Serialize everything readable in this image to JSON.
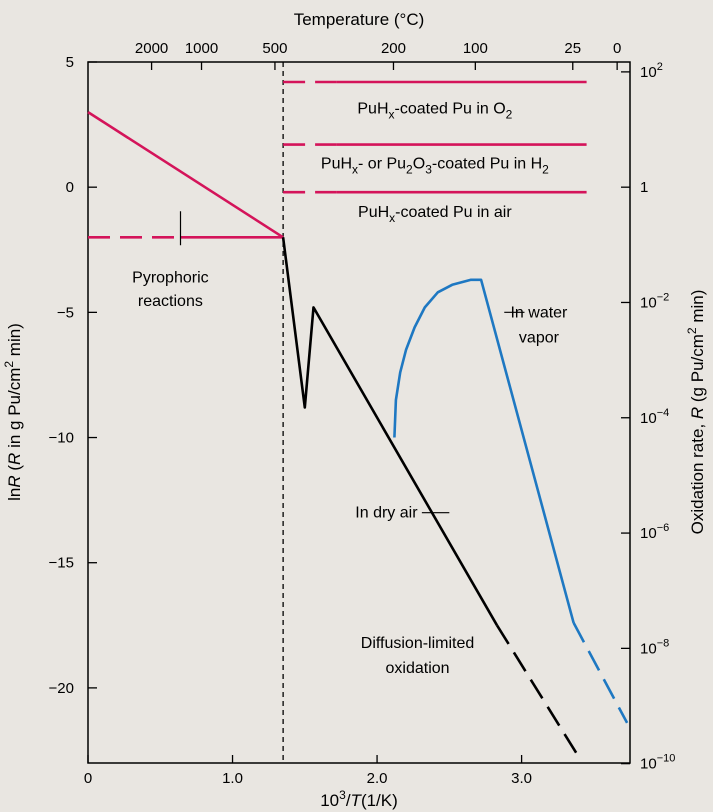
{
  "chart_data": {
    "type": "line",
    "title": "",
    "xlabel": {
      "prefix": "10",
      "sup": "3",
      "mid": "/",
      "italic": "T",
      "suffix": "(1/K)"
    },
    "ylabel_left": {
      "prefix": "ln",
      "italic": "R",
      "mid1": " (",
      "italic2": "R",
      "mid2": " in g Pu/cm",
      "sup": "2",
      "suffix": " min)"
    },
    "ylabel_right": {
      "prefix": "Oxidation rate, ",
      "italic": "R",
      "mid": " (g Pu/cm",
      "sup": "2",
      "suffix": " min)"
    },
    "xlabel_top": "Temperature (°C)",
    "xlim": [
      0,
      3.75
    ],
    "ylim": [
      -23,
      5
    ],
    "x_ticks": [
      {
        "value": 0,
        "label": "0"
      },
      {
        "value": 1,
        "label": "1.0"
      },
      {
        "value": 2,
        "label": "2.0"
      },
      {
        "value": 3,
        "label": "3.0"
      }
    ],
    "y_ticks": [
      {
        "value": 5,
        "label": "5"
      },
      {
        "value": 0,
        "label": "0"
      },
      {
        "value": -5,
        "label": "−5"
      },
      {
        "value": -10,
        "label": "−10"
      },
      {
        "value": -15,
        "label": "−15"
      },
      {
        "value": -20,
        "label": "−20"
      }
    ],
    "top_ticks": [
      {
        "temp_c": 2000,
        "label": "2000"
      },
      {
        "temp_c": 1000,
        "label": "1000"
      },
      {
        "temp_c": 500,
        "label": "500"
      },
      {
        "temp_c": 200,
        "label": "200"
      },
      {
        "temp_c": 100,
        "label": "100"
      },
      {
        "temp_c": 25,
        "label": "25"
      },
      {
        "temp_c": 0,
        "label": "0"
      }
    ],
    "right_ticks": [
      {
        "y": 4.605,
        "base": "10",
        "exp": "2"
      },
      {
        "y": 0,
        "base": "1",
        "exp": ""
      },
      {
        "y": -4.605,
        "base": "10",
        "exp": "−2"
      },
      {
        "y": -9.21,
        "base": "10",
        "exp": "−4"
      },
      {
        "y": -13.816,
        "base": "10",
        "exp": "−6"
      },
      {
        "y": -18.421,
        "base": "10",
        "exp": "−8"
      },
      {
        "y": -23.026,
        "base": "10",
        "exp": "−10"
      }
    ],
    "vline_x": 1.35,
    "series": [
      {
        "key": "o2",
        "color": "#d4145a",
        "segments": [
          {
            "dash": true,
            "points": [
              [
                1.35,
                4.2
              ],
              [
                1.72,
                4.2
              ]
            ]
          },
          {
            "dash": false,
            "points": [
              [
                1.72,
                4.2
              ],
              [
                3.45,
                4.2
              ]
            ]
          }
        ]
      },
      {
        "key": "h2",
        "color": "#d4145a",
        "segments": [
          {
            "dash": true,
            "points": [
              [
                1.35,
                1.7
              ],
              [
                1.72,
                1.7
              ]
            ]
          },
          {
            "dash": false,
            "points": [
              [
                1.72,
                1.7
              ],
              [
                3.45,
                1.7
              ]
            ]
          }
        ]
      },
      {
        "key": "air_coated",
        "color": "#d4145a",
        "segments": [
          {
            "dash": true,
            "points": [
              [
                1.35,
                -0.2
              ],
              [
                1.72,
                -0.2
              ]
            ]
          },
          {
            "dash": false,
            "points": [
              [
                1.72,
                -0.2
              ],
              [
                3.45,
                -0.2
              ]
            ]
          }
        ]
      },
      {
        "key": "pyro_slope",
        "color": "#d4145a",
        "segments": [
          {
            "dash": false,
            "points": [
              [
                0,
                3.0
              ],
              [
                1.35,
                -2.0
              ]
            ]
          }
        ]
      },
      {
        "key": "pyro_flat",
        "color": "#d4145a",
        "segments": [
          {
            "dash": true,
            "points": [
              [
                0,
                -2.0
              ],
              [
                0.64,
                -2.0
              ]
            ]
          },
          {
            "dash": false,
            "points": [
              [
                0.64,
                -2.0
              ],
              [
                1.35,
                -2.0
              ]
            ]
          }
        ]
      },
      {
        "key": "dry_air",
        "color": "#000000",
        "segments": [
          {
            "dash": false,
            "points": [
              [
                1.35,
                -2.0
              ],
              [
                1.5,
                -8.8
              ],
              [
                1.56,
                -4.8
              ],
              [
                2.83,
                -17.5
              ]
            ]
          },
          {
            "dash": true,
            "points": [
              [
                2.83,
                -17.5
              ],
              [
                3.4,
                -22.8
              ]
            ]
          }
        ]
      },
      {
        "key": "water_vapor",
        "color": "#1e78c2",
        "segments": [
          {
            "dash": false,
            "points": [
              [
                2.12,
                -10.0
              ],
              [
                2.13,
                -8.5
              ],
              [
                2.16,
                -7.4
              ],
              [
                2.2,
                -6.5
              ],
              [
                2.26,
                -5.6
              ],
              [
                2.33,
                -4.8
              ],
              [
                2.42,
                -4.2
              ],
              [
                2.52,
                -3.9
              ],
              [
                2.65,
                -3.7
              ],
              [
                2.72,
                -3.7
              ],
              [
                3.36,
                -17.4
              ]
            ]
          },
          {
            "dash": true,
            "points": [
              [
                3.36,
                -17.4
              ],
              [
                3.73,
                -21.4
              ]
            ]
          }
        ]
      }
    ],
    "pyro_marker": {
      "x": 0.64,
      "y": -2.0
    },
    "annotations": {
      "o2": {
        "x": 2.4,
        "y": 2.95,
        "parts": [
          {
            "t": "PuH"
          },
          {
            "t": "x",
            "sub": true
          },
          {
            "t": "-coated Pu in O"
          },
          {
            "t": "2",
            "sub": true
          }
        ]
      },
      "h2": {
        "x": 2.4,
        "y": 0.75,
        "parts": [
          {
            "t": "PuH"
          },
          {
            "t": "x",
            "sub": true
          },
          {
            "t": "- or Pu"
          },
          {
            "t": "2",
            "sub": true
          },
          {
            "t": "O"
          },
          {
            "t": "3",
            "sub": true
          },
          {
            "t": "-coated Pu in H"
          },
          {
            "t": "2",
            "sub": true
          }
        ]
      },
      "air": {
        "x": 2.4,
        "y": -1.2,
        "parts": [
          {
            "t": "PuH"
          },
          {
            "t": "x",
            "sub": true
          },
          {
            "t": "-coated Pu in air"
          }
        ]
      },
      "pyro": {
        "x": 0.57,
        "y": [
          -3.6,
          -4.55
        ],
        "lines": [
          "Pyrophoric",
          "reactions"
        ]
      },
      "water": {
        "x": 3.12,
        "y": [
          -5.0,
          -6.0
        ],
        "lines": [
          "In water",
          "vapor"
        ],
        "leader": [
          [
            2.88,
            -5.0
          ],
          [
            3.02,
            -5.0
          ]
        ]
      },
      "dry": {
        "x": 2.28,
        "y": -13.0,
        "lines": [
          "In dry air"
        ],
        "leader": [
          [
            2.31,
            -13.0
          ],
          [
            2.5,
            -13.0
          ]
        ]
      },
      "diffusion": {
        "x": 2.28,
        "y": [
          -18.2,
          -19.2
        ],
        "lines": [
          "Diffusion-limited",
          "oxidation"
        ]
      }
    }
  }
}
